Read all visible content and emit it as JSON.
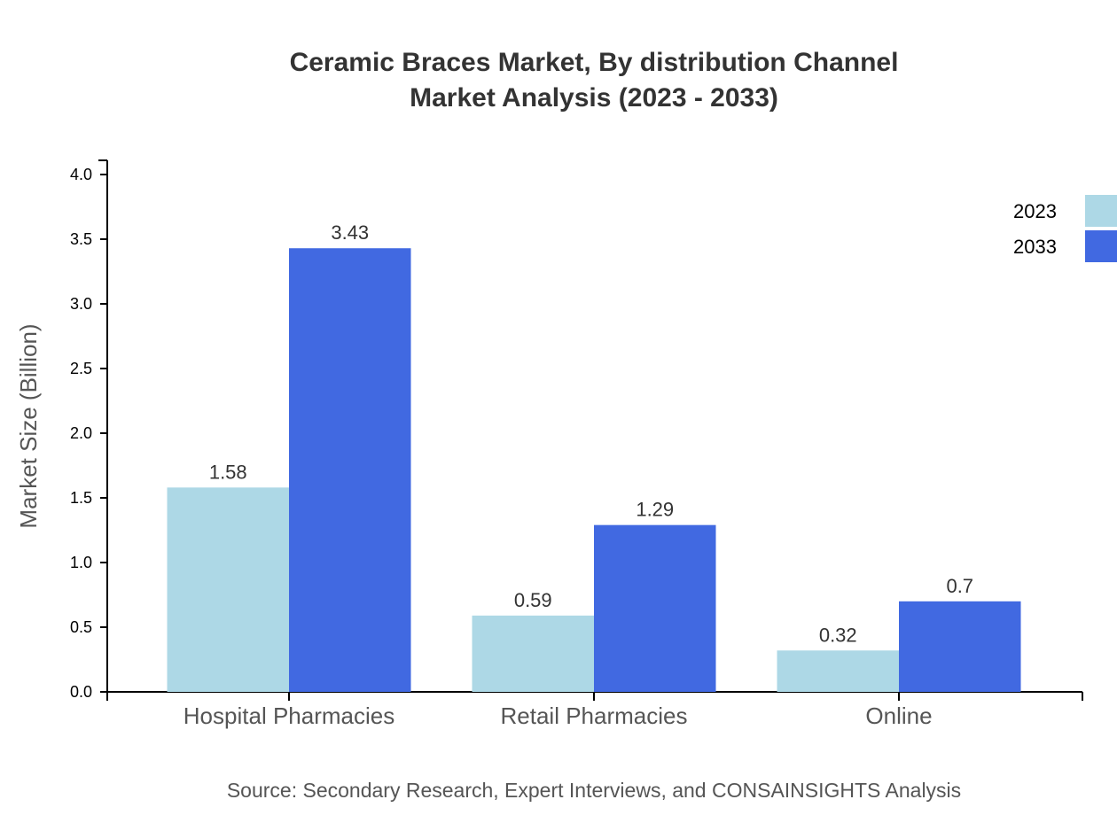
{
  "chart_data": {
    "type": "bar",
    "title": [
      "Ceramic Braces Market, By distribution Channel",
      "Market Analysis (2023 - 2033)"
    ],
    "xlabel": "",
    "ylabel": "Market Size (Billion)",
    "ylim": [
      0,
      4.0
    ],
    "yticks": [
      "0.0",
      "0.5",
      "1.0",
      "1.5",
      "2.0",
      "2.5",
      "3.0",
      "3.5",
      "4.0"
    ],
    "categories": [
      "Hospital Pharmacies",
      "Retail Pharmacies",
      "Online"
    ],
    "series": [
      {
        "name": "2023",
        "values": [
          1.58,
          0.59,
          0.32
        ],
        "labels": [
          "1.58",
          "0.59",
          "0.32"
        ],
        "color": "#ADD8E6"
      },
      {
        "name": "2033",
        "values": [
          3.43,
          1.29,
          0.7
        ],
        "labels": [
          "3.43",
          "1.29",
          "0.7"
        ],
        "color": "#4169E1"
      }
    ],
    "grid": false,
    "legend_position": "top-right",
    "source": "Source: Secondary Research, Expert Interviews, and CONSAINSIGHTS Analysis"
  }
}
